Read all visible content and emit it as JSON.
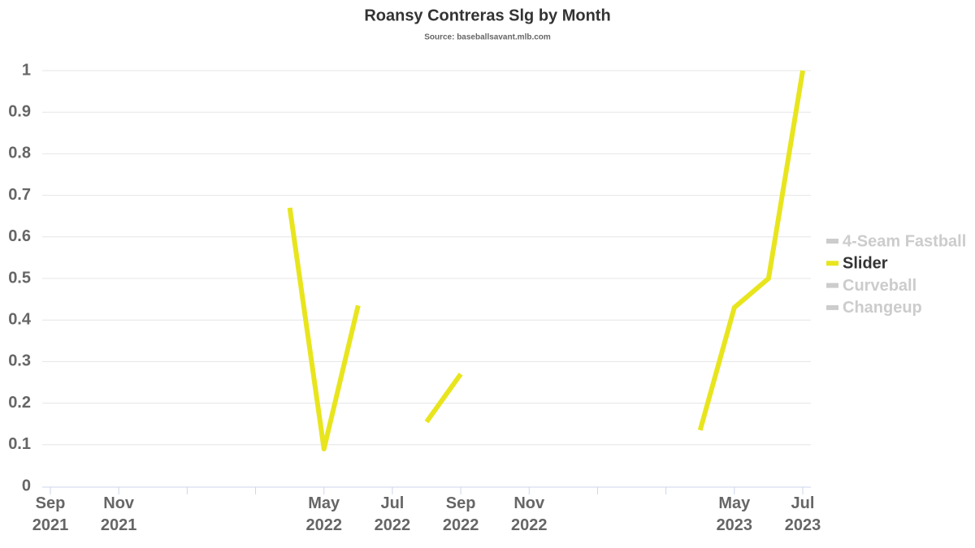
{
  "chart_data": {
    "type": "line",
    "title": "Roansy Contreras Slg by Month",
    "subtitle": "Source: baseballsavant.mlb.com",
    "x": [
      "2022-04",
      "2022-05",
      "2022-06",
      "2022-07",
      "2022-08",
      "2022-09",
      "2022-10",
      "2023-04",
      "2023-05",
      "2023-06",
      "2023-07"
    ],
    "series": [
      {
        "name": "4-Seam Fastball",
        "color": "#cccccc",
        "visible": false,
        "values": [
          null,
          null,
          null,
          null,
          null,
          null,
          null,
          null,
          null,
          null,
          null
        ]
      },
      {
        "name": "Slider",
        "color": "#e8e51e",
        "visible": true,
        "values": [
          0.67,
          0.09,
          0.435,
          null,
          0.155,
          0.27,
          null,
          0.135,
          0.43,
          0.5,
          1
        ]
      },
      {
        "name": "Curveball",
        "color": "#cccccc",
        "visible": false,
        "values": [
          null,
          null,
          null,
          null,
          null,
          null,
          null,
          null,
          null,
          null,
          null
        ]
      },
      {
        "name": "Changeup",
        "color": "#cccccc",
        "visible": false,
        "values": [
          null,
          null,
          null,
          null,
          null,
          null,
          null,
          null,
          null,
          null,
          null
        ]
      }
    ],
    "xlim": [
      "2021-09",
      "2023-07"
    ],
    "xticks": [
      {
        "value": "2021-09",
        "label": "Sep 2021"
      },
      {
        "value": "2021-11",
        "label": "Nov 2021"
      },
      {
        "value": "2022-01",
        "label": null
      },
      {
        "value": "2022-03",
        "label": null
      },
      {
        "value": "2022-05",
        "label": "May 2022"
      },
      {
        "value": "2022-07",
        "label": "Jul 2022"
      },
      {
        "value": "2022-09",
        "label": "Sep 2022"
      },
      {
        "value": "2022-11",
        "label": "Nov 2022"
      },
      {
        "value": "2023-01",
        "label": null
      },
      {
        "value": "2023-03",
        "label": null
      },
      {
        "value": "2023-05",
        "label": "May 2023"
      },
      {
        "value": "2023-07",
        "label": "Jul 2023"
      }
    ],
    "ylim": [
      0,
      1
    ],
    "yticks": [
      0,
      0.1,
      0.2,
      0.3,
      0.4,
      0.5,
      0.6,
      0.7,
      0.8,
      0.9,
      1
    ],
    "grid": true,
    "legend": "right"
  }
}
